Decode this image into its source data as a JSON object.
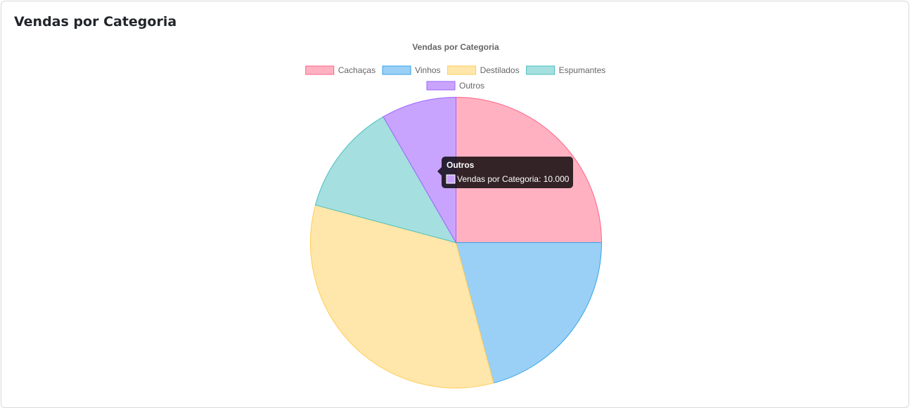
{
  "card": {
    "title": "Vendas por Categoria"
  },
  "chart_data": {
    "type": "pie",
    "title": "Vendas por Categoria",
    "dataset_label": "Vendas por Categoria",
    "categories": [
      "Cachaças",
      "Vinhos",
      "Destilados",
      "Espumantes",
      "Outros"
    ],
    "values": [
      30000,
      25000,
      40000,
      15000,
      10000
    ],
    "colors": {
      "fill": [
        "#ffb1c1",
        "#9ad0f5",
        "#ffe6aa",
        "#a5dfdf",
        "#c9a4ff"
      ],
      "border": [
        "#ff6384",
        "#36a2eb",
        "#ffcd56",
        "#4bc0c0",
        "#9966ff"
      ]
    },
    "legend_position": "top",
    "tooltip": {
      "title": "Outros",
      "body": "Vendas por Categoria: 10.000",
      "swatch_color": "#c9a4ff"
    }
  }
}
